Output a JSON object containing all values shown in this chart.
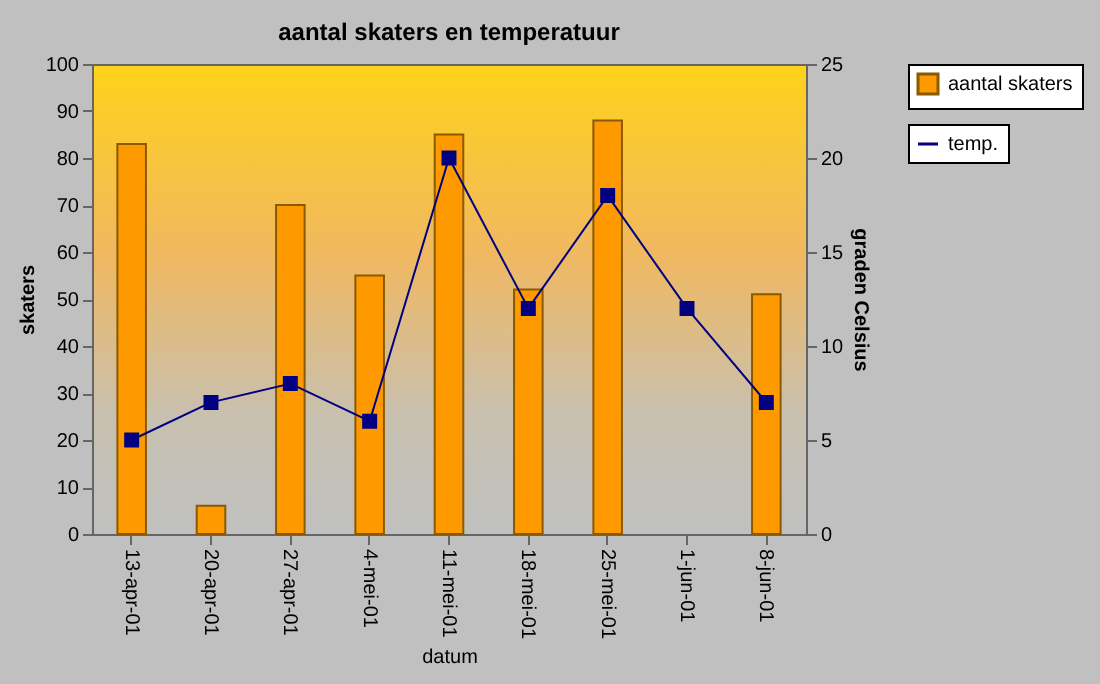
{
  "chart_data": {
    "type": "bar",
    "title": "aantal skaters en temperatuur",
    "xlabel": "datum",
    "ylabel": "skaters",
    "y2label": "graden Celsius",
    "categories": [
      "13-apr-01",
      "20-apr-01",
      "27-apr-01",
      "4-mei-01",
      "11-mei-01",
      "18-mei-01",
      "25-mei-01",
      "1-jun-01",
      "8-jun-01"
    ],
    "series": [
      {
        "name": "aantal skaters",
        "color": "#ff9900",
        "values": [
          83,
          6,
          70,
          55,
          85,
          52,
          88,
          null,
          51
        ]
      },
      {
        "name": "temp.",
        "type": "line",
        "axis": "y2",
        "color": "#000080",
        "values": [
          5,
          7,
          8,
          6,
          20,
          12,
          18,
          12,
          7
        ]
      }
    ],
    "ylim": [
      0,
      100
    ],
    "yticks": [
      0,
      10,
      20,
      30,
      40,
      50,
      60,
      70,
      80,
      90,
      100
    ],
    "y2lim": [
      0,
      25
    ],
    "y2ticks": [
      0,
      5,
      10,
      15,
      20,
      25
    ],
    "grid": false,
    "legend": "right",
    "marker": "square",
    "line_style": "solid"
  }
}
